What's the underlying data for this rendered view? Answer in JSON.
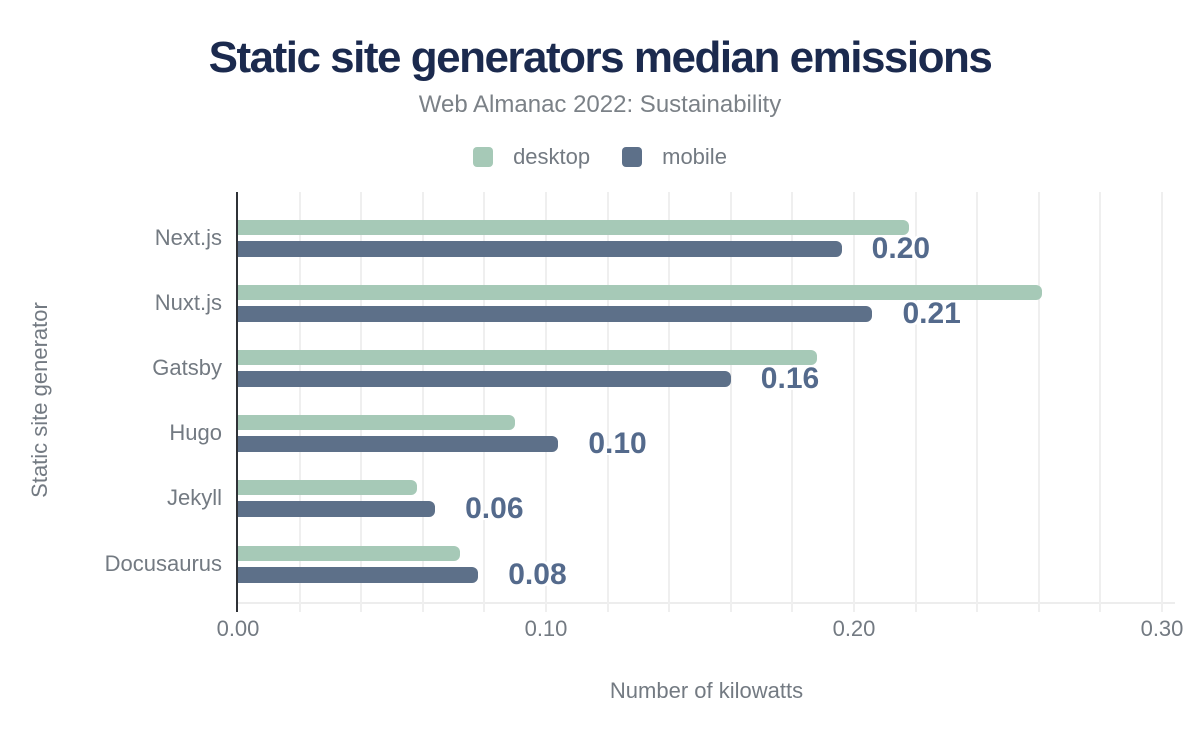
{
  "header": {
    "title": "Static site generators median emissions",
    "subtitle": "Web Almanac 2022: Sustainability"
  },
  "legend": {
    "items": [
      {
        "label": "desktop",
        "color": "#a6c9b7"
      },
      {
        "label": "mobile",
        "color": "#5d7089"
      }
    ]
  },
  "axes": {
    "x": {
      "title": "Number of kilowatts",
      "tick_labels": [
        "0.00",
        "0.10",
        "0.20",
        "0.30"
      ],
      "tick_values": [
        0,
        0.1,
        0.2,
        0.3
      ]
    },
    "y": {
      "title": "Static site generator"
    }
  },
  "chart_data": {
    "type": "bar",
    "orientation": "horizontal",
    "title": "Static site generators median emissions",
    "subtitle": "Web Almanac 2022: Sustainability",
    "xlabel": "Number of kilowatts",
    "ylabel": "Static site generator",
    "xlim": [
      0,
      0.304
    ],
    "xticks": [
      0,
      0.1,
      0.2,
      0.3
    ],
    "grid": "vertical",
    "grid_interval": 0.02,
    "legend_position": "top",
    "categories": [
      "Next.js",
      "Nuxt.js",
      "Gatsby",
      "Hugo",
      "Jekyll",
      "Docusaurus"
    ],
    "series": [
      {
        "name": "desktop",
        "color": "#a6c9b7",
        "values": [
          0.218,
          0.261,
          0.188,
          0.09,
          0.058,
          0.072
        ]
      },
      {
        "name": "mobile",
        "color": "#5d7089",
        "values": [
          0.196,
          0.206,
          0.16,
          0.104,
          0.064,
          0.078
        ],
        "data_labels": [
          "0.20",
          "0.21",
          "0.16",
          "0.10",
          "0.06",
          "0.08"
        ]
      }
    ],
    "data_label_color": "#546a8c"
  },
  "style": {
    "title_color": "#1b2a4e",
    "subtitle_color": "#7b8187",
    "text_color": "#737a82",
    "grid_color": "#efefef",
    "axis_color": "#2f3237",
    "background": "#ffffff"
  }
}
